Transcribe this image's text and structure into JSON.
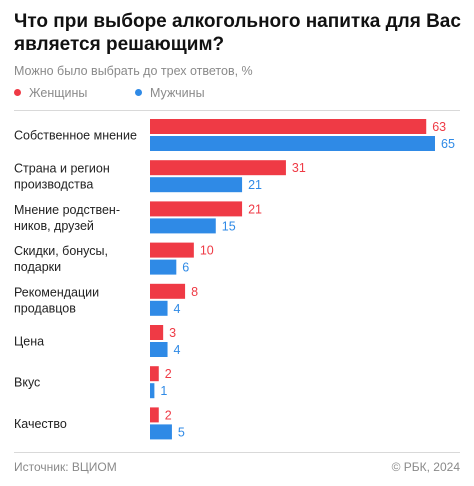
{
  "colors": {
    "women": "#ef3a45",
    "men": "#2f8ae6",
    "label": "#222222"
  },
  "chart_data": {
    "type": "bar",
    "orientation": "horizontal",
    "title": "Что при выборе алкогольного напитка для Вас является решающим?",
    "subtitle": "Можно было выбрать до трех ответов, %",
    "categories": [
      [
        "Собственное мнение"
      ],
      [
        "Страна и регион",
        "производства"
      ],
      [
        "Мнение родствен-",
        "ников, друзей"
      ],
      [
        "Скидки, бонусы,",
        "подарки"
      ],
      [
        "Рекомендации",
        "продавцов"
      ],
      [
        "Цена"
      ],
      [
        "Вкус"
      ],
      [
        "Качество"
      ]
    ],
    "series": [
      {
        "name": "Женщины",
        "values": [
          63,
          31,
          21,
          10,
          8,
          3,
          2,
          2
        ]
      },
      {
        "name": "Мужчины",
        "values": [
          65,
          21,
          15,
          6,
          4,
          4,
          1,
          5
        ]
      }
    ],
    "xlim": [
      0,
      65
    ],
    "legend_position": "top-left",
    "grid": false
  },
  "footer": {
    "source": "Источник: ВЦИОМ",
    "copyright": "© РБК, 2024"
  }
}
